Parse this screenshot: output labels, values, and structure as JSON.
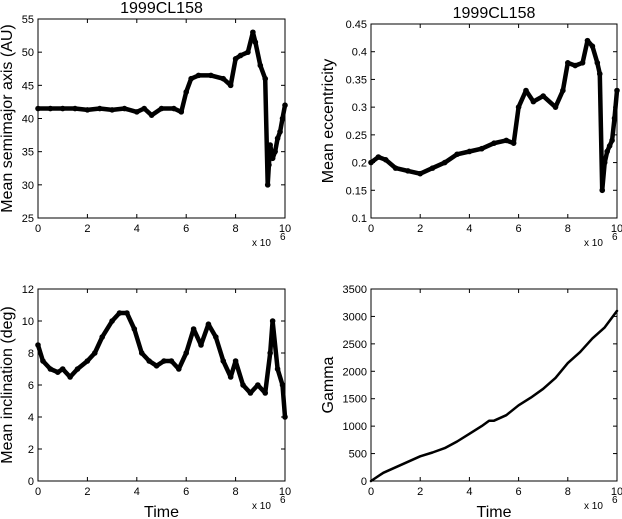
{
  "chart_data": [
    {
      "type": "scatter",
      "title": "1999CL158",
      "xlabel": "",
      "ylabel": "Mean semimajor axis (AU)",
      "xlim": [
        0,
        10
      ],
      "ylim": [
        25,
        55
      ],
      "x_multiplier": "x 10",
      "x_multiplier_exp": "6",
      "xticks": [
        "0",
        "2",
        "4",
        "6",
        "8",
        "10"
      ],
      "yticks": [
        "25",
        "30",
        "35",
        "40",
        "45",
        "50",
        "55"
      ],
      "series": [
        {
          "x": [
            0,
            0.5,
            1,
            1.5,
            2,
            2.5,
            3,
            3.5,
            4,
            4.3,
            4.6,
            5,
            5.5,
            5.8,
            6,
            6.2,
            6.5,
            7,
            7.5,
            7.8,
            8,
            8.2,
            8.5,
            8.7,
            8.8,
            9,
            9.2,
            9.3,
            9.35,
            9.4,
            9.5,
            9.6,
            9.7,
            9.8,
            9.9,
            10
          ],
          "y": [
            41.5,
            41.5,
            41.5,
            41.5,
            41.3,
            41.5,
            41.3,
            41.5,
            41,
            41.5,
            40.5,
            41.5,
            41.5,
            41,
            44,
            46,
            46.5,
            46.5,
            46,
            45,
            49,
            49.5,
            50,
            53,
            51.5,
            48,
            46,
            30,
            33,
            36,
            34,
            35,
            37,
            38,
            40,
            42
          ]
        }
      ]
    },
    {
      "type": "scatter",
      "title": "1999CL158",
      "xlabel": "",
      "ylabel": "Mean eccentricity",
      "xlim": [
        0,
        10
      ],
      "ylim": [
        0.1,
        0.45
      ],
      "x_multiplier": "x 10",
      "x_multiplier_exp": "6",
      "xticks": [
        "0",
        "2",
        "4",
        "6",
        "8",
        "10"
      ],
      "yticks": [
        "0.1",
        "0.15",
        "0.2",
        "0.25",
        "0.3",
        "0.35",
        "0.4",
        "0.45"
      ],
      "series": [
        {
          "x": [
            0,
            0.3,
            0.6,
            1,
            1.5,
            2,
            2.5,
            3,
            3.5,
            4,
            4.5,
            5,
            5.5,
            5.8,
            6,
            6.3,
            6.6,
            7,
            7.5,
            7.8,
            8,
            8.3,
            8.6,
            8.8,
            9,
            9.2,
            9.3,
            9.4,
            9.5,
            9.6,
            9.7,
            9.8,
            9.9,
            10
          ],
          "y": [
            0.2,
            0.21,
            0.205,
            0.19,
            0.185,
            0.18,
            0.19,
            0.2,
            0.215,
            0.22,
            0.225,
            0.235,
            0.24,
            0.235,
            0.3,
            0.33,
            0.31,
            0.32,
            0.3,
            0.33,
            0.38,
            0.375,
            0.38,
            0.42,
            0.41,
            0.38,
            0.36,
            0.15,
            0.2,
            0.22,
            0.23,
            0.24,
            0.28,
            0.33
          ]
        }
      ]
    },
    {
      "type": "scatter",
      "title": "",
      "xlabel": "Time",
      "ylabel": "Mean inclination (deg)",
      "xlim": [
        0,
        10
      ],
      "ylim": [
        0,
        12
      ],
      "x_multiplier": "x 10",
      "x_multiplier_exp": "6",
      "xticks": [
        "0",
        "2",
        "4",
        "6",
        "8",
        "10"
      ],
      "yticks": [
        "0",
        "2",
        "4",
        "6",
        "8",
        "10",
        "12"
      ],
      "series": [
        {
          "x": [
            0,
            0.2,
            0.5,
            0.8,
            1,
            1.3,
            1.6,
            2,
            2.3,
            2.6,
            3,
            3.3,
            3.6,
            3.9,
            4.2,
            4.5,
            4.8,
            5.1,
            5.4,
            5.7,
            6,
            6.3,
            6.6,
            6.9,
            7.2,
            7.5,
            7.8,
            8,
            8.3,
            8.6,
            8.9,
            9.2,
            9.4,
            9.5,
            9.7,
            9.9,
            10
          ],
          "y": [
            8.5,
            7.5,
            7,
            6.8,
            7,
            6.5,
            7,
            7.5,
            8,
            9,
            10,
            10.5,
            10.5,
            9.5,
            8,
            7.5,
            7.2,
            7.5,
            7.5,
            7,
            8,
            9.5,
            8.5,
            9.8,
            9,
            7.5,
            6.5,
            7.5,
            6,
            5.5,
            6,
            5.5,
            8,
            10,
            7,
            6,
            4
          ]
        }
      ]
    },
    {
      "type": "line",
      "title": "",
      "xlabel": "Time",
      "ylabel": "Gamma",
      "xlim": [
        0,
        10
      ],
      "ylim": [
        0,
        3500
      ],
      "x_multiplier": "x 10",
      "x_multiplier_exp": "6",
      "xticks": [
        "0",
        "2",
        "4",
        "6",
        "8",
        "10"
      ],
      "yticks": [
        "0",
        "500",
        "1000",
        "1500",
        "2000",
        "2500",
        "3000",
        "3500"
      ],
      "series": [
        {
          "x": [
            0,
            0.5,
            1,
            1.5,
            2,
            2.5,
            3,
            3.5,
            4,
            4.5,
            4.8,
            5,
            5.5,
            6,
            6.5,
            7,
            7.5,
            8,
            8.5,
            9,
            9.5,
            10
          ],
          "y": [
            0,
            150,
            250,
            350,
            450,
            520,
            600,
            720,
            860,
            1000,
            1100,
            1100,
            1200,
            1380,
            1520,
            1680,
            1880,
            2150,
            2350,
            2600,
            2800,
            3100
          ]
        }
      ]
    }
  ]
}
